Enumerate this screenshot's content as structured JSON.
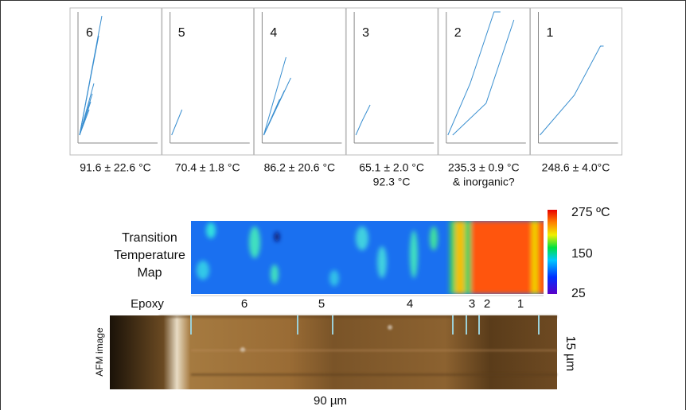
{
  "panels": [
    {
      "label": "6",
      "lines": [
        "91.6 ± 22.6 °C"
      ]
    },
    {
      "label": "5",
      "lines": [
        "70.4 ± 1.8 °C"
      ]
    },
    {
      "label": "4",
      "lines": [
        "86.2 ± 20.6 °C"
      ]
    },
    {
      "label": "3",
      "lines": [
        "65.1 ± 2.0 °C",
        "92.3 °C"
      ]
    },
    {
      "label": "2",
      "lines": [
        "235.3 ± 0.9 °C",
        "& inorganic?"
      ]
    },
    {
      "label": "1",
      "lines": [
        "248.6 ± 4.0°C"
      ]
    }
  ],
  "map_title": [
    "Transition",
    "Temperature",
    "Map"
  ],
  "colorbar": {
    "max": "275 ºC",
    "mid": "150",
    "min": "25"
  },
  "regions": [
    "Epoxy",
    "6",
    "5",
    "4",
    "3",
    "2",
    "1"
  ],
  "afm": {
    "label": "AFM image",
    "height": "15 µm",
    "width": "90 µm"
  }
}
